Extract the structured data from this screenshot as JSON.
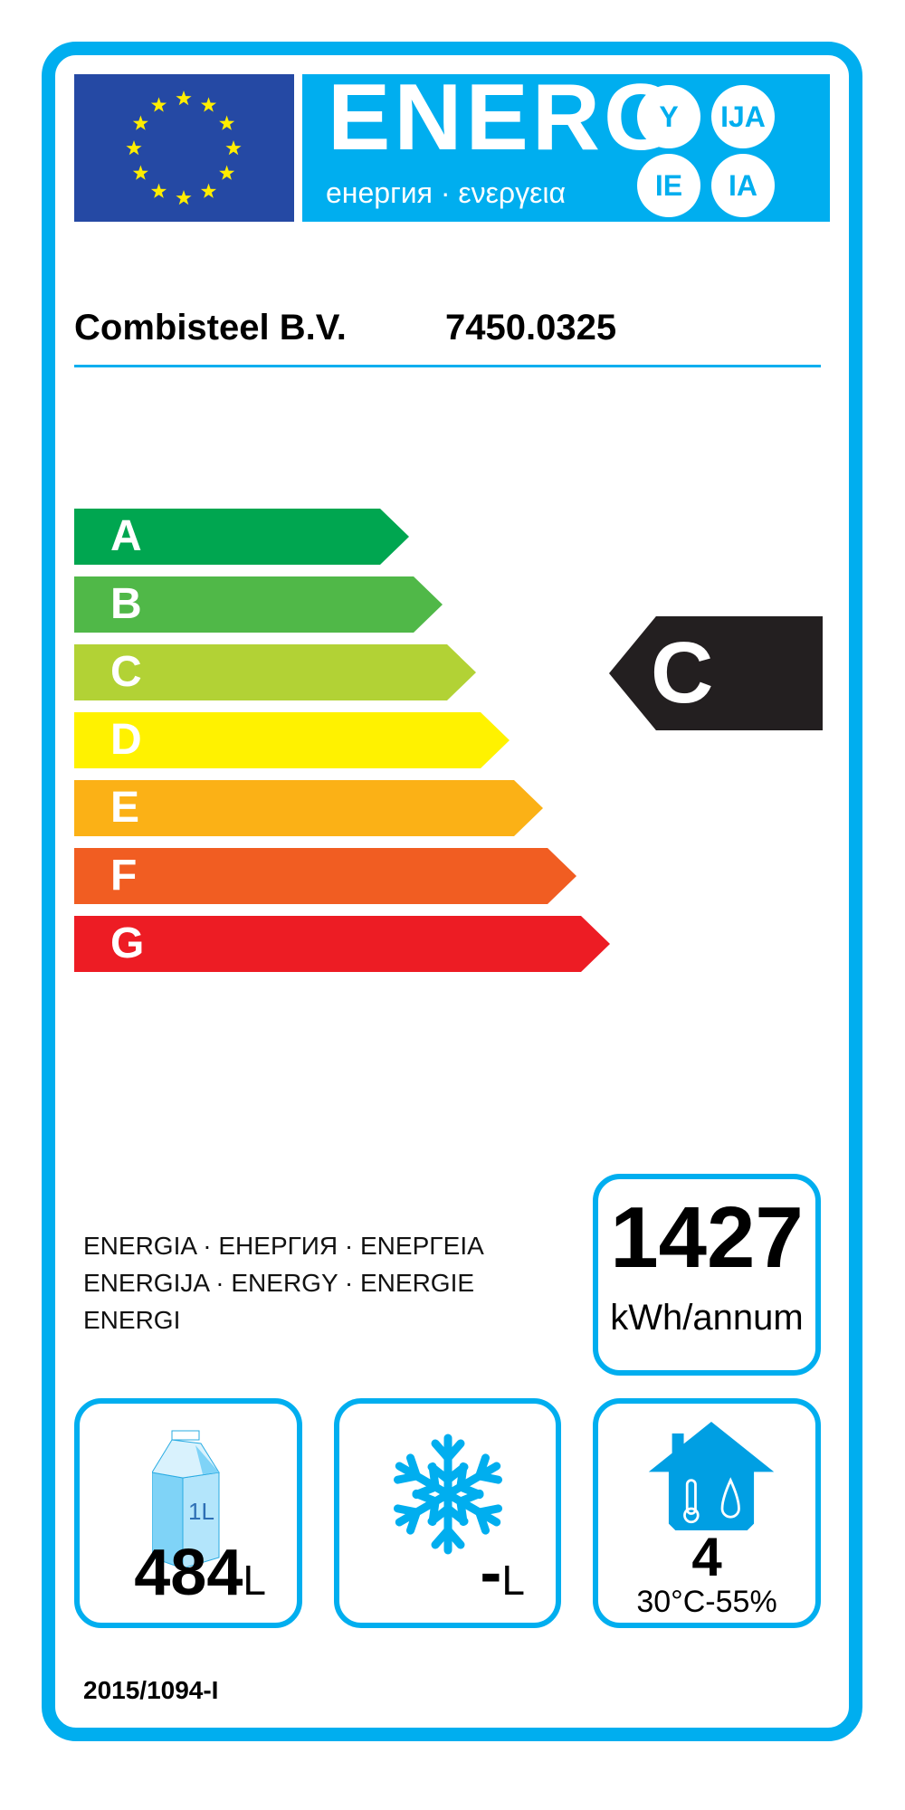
{
  "header": {
    "title": "ENERG",
    "subtitle": "енергия · ενεργεια",
    "suffixes": [
      "Y",
      "IJA",
      "IE",
      "IA"
    ]
  },
  "supplier": {
    "name": "Combisteel B.V.",
    "model": "7450.0325"
  },
  "scale": [
    {
      "letter": "A",
      "color": "#00a650"
    },
    {
      "letter": "B",
      "color": "#50b848"
    },
    {
      "letter": "C",
      "color": "#b2d235"
    },
    {
      "letter": "D",
      "color": "#fff200"
    },
    {
      "letter": "E",
      "color": "#fbb116"
    },
    {
      "letter": "F",
      "color": "#f15d22"
    },
    {
      "letter": "G",
      "color": "#ed1c24"
    }
  ],
  "rating": {
    "class": "C"
  },
  "energy_words": [
    "ENERGIA · ЕНЕРГИЯ · ΕΝΕΡΓΕΙΑ",
    "ENERGIJA · ENERGY · ENERGIE",
    "ENERGI"
  ],
  "consumption": {
    "value": "1427",
    "unit": "kWh/annum"
  },
  "fresh_volume": {
    "value": "484",
    "unit": "L",
    "carton_label": "1L"
  },
  "frozen_volume": {
    "value": "-",
    "unit": "L"
  },
  "climate": {
    "class": "4",
    "conditions": "30°C-55%"
  },
  "regulation": "2015/1094-I",
  "colors": {
    "accent": "#00aeef",
    "eu_blue": "#2549a4",
    "star": "#ffed00"
  }
}
